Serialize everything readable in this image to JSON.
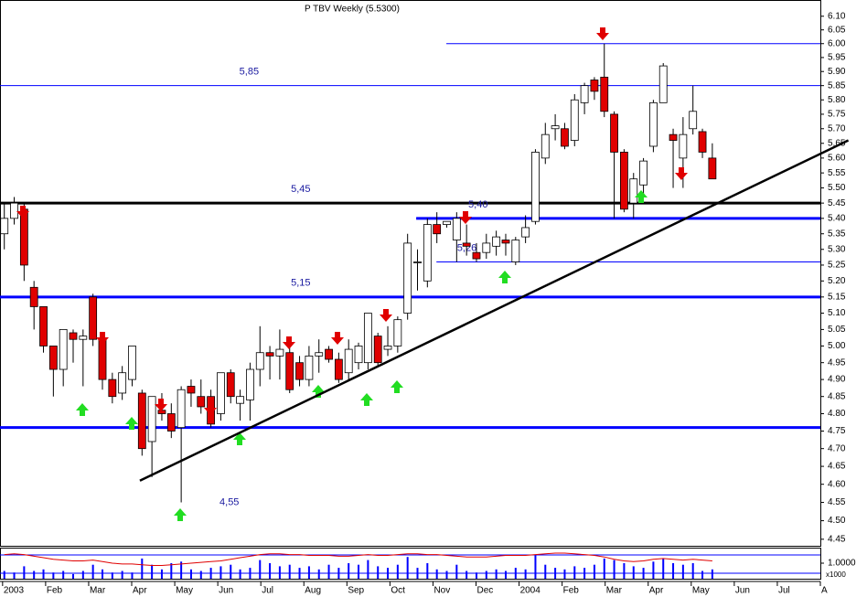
{
  "chart_data": {
    "type": "candlestick",
    "title": "P TBV Weekly (5.5300)",
    "log": true,
    "ylim": [
      4.43,
      6.16
    ],
    "yticks": [
      {
        "value": 6.1,
        "label": "6.10"
      },
      {
        "value": 6.05,
        "label": "6.05"
      },
      {
        "value": 6,
        "label": "6.00"
      },
      {
        "value": 5.95,
        "label": "5.95"
      },
      {
        "value": 5.9,
        "label": "5.90"
      },
      {
        "value": 5.85,
        "label": "5.85"
      },
      {
        "value": 5.8,
        "label": "5.80"
      },
      {
        "value": 5.75,
        "label": "5.75"
      },
      {
        "value": 5.7,
        "label": "5.70"
      },
      {
        "value": 5.65,
        "label": "5.65"
      },
      {
        "value": 5.6,
        "label": "5.60"
      },
      {
        "value": 5.55,
        "label": "5.55"
      },
      {
        "value": 5.5,
        "label": "5.50"
      },
      {
        "value": 5.45,
        "label": "5.45"
      },
      {
        "value": 5.4,
        "label": "5.40"
      },
      {
        "value": 5.35,
        "label": "5.35"
      },
      {
        "value": 5.3,
        "label": "5.30"
      },
      {
        "value": 5.25,
        "label": "5.25"
      },
      {
        "value": 5.2,
        "label": "5.20"
      },
      {
        "value": 5.15,
        "label": "5.15"
      },
      {
        "value": 5.1,
        "label": "5.10"
      },
      {
        "value": 5.05,
        "label": "5.05"
      },
      {
        "value": 5,
        "label": "5.00"
      },
      {
        "value": 4.95,
        "label": "4.95"
      },
      {
        "value": 4.9,
        "label": "4.90"
      },
      {
        "value": 4.85,
        "label": "4.85"
      },
      {
        "value": 4.8,
        "label": "4.80"
      },
      {
        "value": 4.75,
        "label": "4.75"
      },
      {
        "value": 4.7,
        "label": "4.70"
      },
      {
        "value": 4.65,
        "label": "4.65"
      },
      {
        "value": 4.6,
        "label": "4.60"
      },
      {
        "value": 4.55,
        "label": "4.55"
      },
      {
        "value": 4.5,
        "label": "4.50"
      },
      {
        "value": 4.45,
        "label": "4.45"
      }
    ],
    "xlim": [
      -0.06,
      19
    ],
    "xticks": [
      {
        "value": 0,
        "label": "2003"
      },
      {
        "value": 1,
        "label": "Feb"
      },
      {
        "value": 2,
        "label": "Mar"
      },
      {
        "value": 3,
        "label": "Apr"
      },
      {
        "value": 4,
        "label": "May"
      },
      {
        "value": 5,
        "label": "Jun"
      },
      {
        "value": 6,
        "label": "Jul"
      },
      {
        "value": 7,
        "label": "Aug"
      },
      {
        "value": 8,
        "label": "Sep"
      },
      {
        "value": 9,
        "label": "Oct"
      },
      {
        "value": 10,
        "label": "Nov"
      },
      {
        "value": 11,
        "label": "Dec"
      },
      {
        "value": 12,
        "label": "2004"
      },
      {
        "value": 13,
        "label": "Feb"
      },
      {
        "value": 14,
        "label": "Mar"
      },
      {
        "value": 15,
        "label": "Apr"
      },
      {
        "value": 16,
        "label": "May"
      },
      {
        "value": 17,
        "label": "Jun"
      },
      {
        "value": 18,
        "label": "Jul"
      },
      {
        "value": 19,
        "label": "A"
      }
    ],
    "x": [
      0.04,
      0.27,
      0.5,
      0.73,
      0.95,
      1.18,
      1.41,
      1.64,
      1.87,
      2.1,
      2.32,
      2.55,
      2.78,
      3.01,
      3.24,
      3.47,
      3.7,
      3.92,
      4.15,
      4.38,
      4.61,
      4.84,
      5.07,
      5.3,
      5.52,
      5.75,
      5.98,
      6.21,
      6.44,
      6.67,
      6.9,
      7.12,
      7.35,
      7.58,
      7.81,
      8.04,
      8.27,
      8.49,
      8.72,
      8.95,
      9.18,
      9.41,
      9.64,
      9.87,
      10.09,
      10.32,
      10.55,
      10.78,
      11.01,
      11.24,
      11.47,
      11.69,
      11.92,
      12.15,
      12.38,
      12.61,
      12.84,
      13.06,
      13.29,
      13.52,
      13.75,
      13.98,
      14.21,
      14.44,
      14.66,
      14.89,
      15.12,
      15.35,
      15.58,
      15.81,
      16.04,
      16.26,
      16.49
    ],
    "open": [
      5.35,
      5.4,
      5.43,
      5.18,
      5.12,
      5,
      4.93,
      5.04,
      5.02,
      5.15,
      5.02,
      4.9,
      4.86,
      4.9,
      4.86,
      4.72,
      4.81,
      4.8,
      4.76,
      4.88,
      4.85,
      4.85,
      4.8,
      4.92,
      4.83,
      4.84,
      4.93,
      4.98,
      4.97,
      4.98,
      4.95,
      4.9,
      4.97,
      4.99,
      4.96,
      4.92,
      4.95,
      4.95,
      5.03,
      4.99,
      5,
      5.1,
      5.26,
      5.2,
      5.38,
      5.38,
      5.33,
      5.32,
      5.29,
      5.29,
      5.31,
      5.33,
      5.26,
      5.34,
      5.39,
      5.6,
      5.7,
      5.7,
      5.66,
      5.79,
      5.87,
      5.88,
      5.75,
      5.62,
      5.45,
      5.51,
      5.64,
      5.79,
      5.68,
      5.6,
      5.7,
      5.69,
      5.6
    ],
    "high": [
      5.45,
      5.47,
      5.45,
      5.2,
      5.12,
      5,
      5.05,
      5.05,
      5.05,
      5.16,
      5.02,
      4.92,
      4.94,
      5,
      4.87,
      4.85,
      4.86,
      4.83,
      4.88,
      4.9,
      4.9,
      4.87,
      4.92,
      4.93,
      4.87,
      4.95,
      5.06,
      5,
      5.05,
      5,
      4.97,
      5,
      5.02,
      5,
      4.98,
      5.02,
      5.01,
      5.1,
      5.04,
      5.06,
      5.09,
      5.35,
      5.3,
      5.4,
      5.42,
      5.39,
      5.42,
      5.38,
      5.32,
      5.35,
      5.36,
      5.35,
      5.34,
      5.41,
      5.63,
      5.72,
      5.75,
      5.72,
      5.82,
      5.86,
      5.88,
      6,
      5.76,
      5.63,
      5.55,
      5.6,
      5.8,
      5.93,
      5.7,
      5.74,
      5.85,
      5.7,
      5.65
    ],
    "low": [
      5.3,
      5.38,
      5.2,
      5.05,
      4.98,
      4.85,
      4.88,
      4.95,
      4.88,
      5,
      4.87,
      4.83,
      4.84,
      4.88,
      4.68,
      4.62,
      4.78,
      4.73,
      4.55,
      4.82,
      4.8,
      4.76,
      4.78,
      4.83,
      4.78,
      4.78,
      4.88,
      4.9,
      4.9,
      4.86,
      4.88,
      4.88,
      4.92,
      4.95,
      4.89,
      4.9,
      4.93,
      4.93,
      4.94,
      4.97,
      4.98,
      5.08,
      5.17,
      5.18,
      5.32,
      5.37,
      5.26,
      5.28,
      5.26,
      5.27,
      5.28,
      5.28,
      5.25,
      5.32,
      5.38,
      5.58,
      5.66,
      5.63,
      5.64,
      5.75,
      5.8,
      5.74,
      5.4,
      5.42,
      5.4,
      5.48,
      5.62,
      5.79,
      5.5,
      5.5,
      5.68,
      5.6,
      5.53
    ],
    "close": [
      5.4,
      5.45,
      5.25,
      5.12,
      5,
      4.93,
      5.05,
      5.02,
      5.03,
      5.02,
      4.9,
      4.85,
      4.92,
      5,
      4.7,
      4.85,
      4.8,
      4.75,
      4.87,
      4.86,
      4.82,
      4.77,
      4.92,
      4.85,
      4.85,
      4.93,
      4.98,
      4.97,
      4.99,
      4.87,
      4.9,
      4.97,
      4.98,
      4.96,
      4.9,
      4.99,
      5,
      5.1,
      4.95,
      5,
      5.08,
      5.32,
      5.26,
      5.38,
      5.35,
      5.39,
      5.4,
      5.31,
      5.27,
      5.32,
      5.34,
      5.32,
      5.33,
      5.37,
      5.62,
      5.68,
      5.71,
      5.64,
      5.8,
      5.85,
      5.83,
      5.76,
      5.62,
      5.43,
      5.53,
      5.59,
      5.79,
      5.92,
      5.66,
      5.68,
      5.76,
      5.62,
      5.53
    ],
    "up_color": "#ffffff",
    "down_color": "#e00000",
    "levels": [
      {
        "value": 6,
        "from": 10.31,
        "color": "#0000ff",
        "thick": false
      },
      {
        "value": 5.85,
        "label": "5,85",
        "label_x": 5.5,
        "color": "#0000ff",
        "thick": false
      },
      {
        "value": 5.45,
        "label": "5,45",
        "label_x": 6.7,
        "color": "#000000",
        "thick": true
      },
      {
        "value": 5.4,
        "label": "5,40",
        "label_x": 10.82,
        "from": 9.61,
        "color": "#0000ff",
        "thick": true
      },
      {
        "value": 5.26,
        "label": "5,26",
        "label_x": 10.56,
        "from": 10.08,
        "color": "#0000ff",
        "thick": false
      },
      {
        "value": 5.15,
        "label": "5,15",
        "label_x": 6.7,
        "color": "#0000ff",
        "thick": true
      },
      {
        "value": 4.76,
        "color": "#0000ff",
        "thick": true
      }
    ],
    "annotations": [
      {
        "value": 4.55,
        "label": "4,55",
        "x": 5.04
      }
    ],
    "trendline": {
      "x": [
        3.19,
        19.65
      ],
      "y": [
        4.61,
        5.66
      ],
      "color": "#000000"
    },
    "volume": {
      "values": [
        0.5,
        0.4,
        0.8,
        0.5,
        0.6,
        0.4,
        0.5,
        0.3,
        0.5,
        0.9,
        0.6,
        0.4,
        0.5,
        0.4,
        1.3,
        0.9,
        0.6,
        1.0,
        1.1,
        0.6,
        0.5,
        0.7,
        0.8,
        0.9,
        0.6,
        0.7,
        1.2,
        1.0,
        0.8,
        0.9,
        0.7,
        0.8,
        0.6,
        0.9,
        0.7,
        1.0,
        0.9,
        1.2,
        0.8,
        0.7,
        0.9,
        1.4,
        0.7,
        1.0,
        0.6,
        0.5,
        0.9,
        0.5,
        0.4,
        0.5,
        0.6,
        0.5,
        0.7,
        0.6,
        1.5,
        0.9,
        0.7,
        0.6,
        0.8,
        0.7,
        0.9,
        1.3,
        1.2,
        1.0,
        0.8,
        0.7,
        1.1,
        1.3,
        1.0,
        0.9,
        1.0,
        0.5,
        0.6
      ],
      "color": "#0000ff",
      "ylim": [
        0,
        2
      ],
      "yticks": [
        {
          "value": 1,
          "label": "1.0000"
        }
      ],
      "unit_label": "x1000"
    },
    "oscillator": {
      "values": [
        1.55,
        1.6,
        1.55,
        1.45,
        1.35,
        1.25,
        1.2,
        1.15,
        1.15,
        1.2,
        1.1,
        1.0,
        0.95,
        0.95,
        0.9,
        0.85,
        0.85,
        0.9,
        0.95,
        1.0,
        1.05,
        1.1,
        1.15,
        1.25,
        1.35,
        1.45,
        1.55,
        1.6,
        1.6,
        1.55,
        1.55,
        1.5,
        1.5,
        1.5,
        1.45,
        1.45,
        1.5,
        1.55,
        1.5,
        1.5,
        1.55,
        1.6,
        1.6,
        1.55,
        1.55,
        1.5,
        1.45,
        1.4,
        1.4,
        1.4,
        1.45,
        1.5,
        1.5,
        1.5,
        1.55,
        1.6,
        1.65,
        1.65,
        1.6,
        1.55,
        1.5,
        1.4,
        1.25,
        1.15,
        1.1,
        1.15,
        1.25,
        1.3,
        1.25,
        1.2,
        1.25,
        1.2,
        1.15
      ],
      "color": "#e00000"
    }
  }
}
